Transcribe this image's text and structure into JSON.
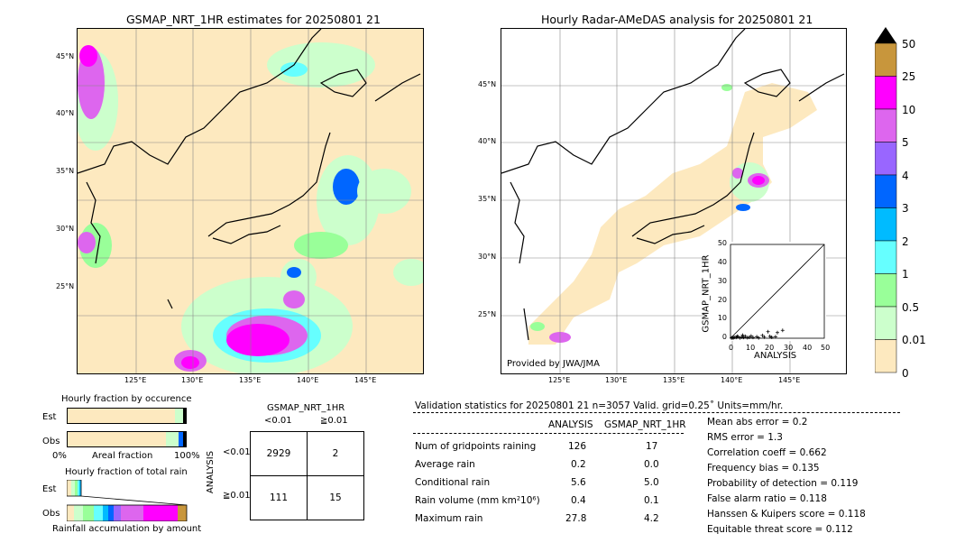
{
  "maps": {
    "left_title": "GSMAP_NRT_1HR estimates for 20250801 21",
    "right_title": "Hourly Radar-AMeDAS analysis for 20250801 21",
    "lat_labels": [
      "45°N",
      "40°N",
      "35°N",
      "30°N",
      "25°N"
    ],
    "lon_labels": [
      "125°E",
      "130°E",
      "135°E",
      "140°E",
      "145°E"
    ],
    "provided_by": "Provided by JWA/JMA"
  },
  "colorbar": {
    "labels": [
      "50",
      "25",
      "10",
      "5",
      "4",
      "3",
      "2",
      "1",
      "0.5",
      "0.01",
      "0"
    ],
    "colors": [
      "#c8963c",
      "#ff00ff",
      "#dd66ee",
      "#9966ff",
      "#0066ff",
      "#00bbff",
      "#66ffff",
      "#99ff99",
      "#ccffcc",
      "#fde9bf"
    ],
    "extend_color": "#000000"
  },
  "fraction_occurrence": {
    "title": "Hourly fraction by occurence",
    "row_labels": [
      "Est",
      "Obs"
    ],
    "axis_left": "0%",
    "axis_center": "Areal fraction",
    "axis_right": "100%"
  },
  "fraction_total": {
    "title": "Hourly fraction of total rain",
    "row_labels": [
      "Est",
      "Obs"
    ],
    "footer": "Rainfall accumulation by amount"
  },
  "contingency": {
    "title": "GSMAP_NRT_1HR",
    "col_labels": [
      "<0.01",
      "≧0.01"
    ],
    "row_axis": "ANALYSIS",
    "row_labels": [
      "<0.01",
      "≧0.01"
    ],
    "cells": [
      [
        "2929",
        "2"
      ],
      [
        "111",
        "15"
      ]
    ]
  },
  "validation": {
    "header": "Validation statistics for 20250801 21  n=3057 Valid. grid=0.25˚ Units=mm/hr.",
    "col_analysis": "ANALYSIS",
    "col_gsmap": "GSMAP_NRT_1HR",
    "rows": [
      {
        "label": "Num of gridpoints raining",
        "analysis": "126",
        "gsmap": "17"
      },
      {
        "label": "Average rain",
        "analysis": "0.2",
        "gsmap": "0.0"
      },
      {
        "label": "Conditional rain",
        "analysis": "5.6",
        "gsmap": "5.0"
      },
      {
        "label": "Rain volume (mm km²10⁶)",
        "analysis": "0.4",
        "gsmap": "0.1"
      },
      {
        "label": "Maximum rain",
        "analysis": "27.8",
        "gsmap": "4.2"
      }
    ],
    "scores": [
      "Mean abs error =    0.2",
      "RMS error =    1.3",
      "Correlation coeff =  0.662",
      "Frequency bias =  0.135",
      "Probability of detection =  0.119",
      "False alarm ratio =  0.118",
      "Hanssen & Kuipers score =  0.118",
      "Equitable threat score =  0.112"
    ]
  },
  "chart_data": {
    "type": "scatter",
    "xlabel": "ANALYSIS",
    "ylabel": "GSMAP_NRT_1HR",
    "xlim": [
      0,
      50
    ],
    "ylim": [
      0,
      50
    ],
    "ticks": [
      "0",
      "10",
      "20",
      "30",
      "40",
      "50"
    ],
    "points": [
      [
        1,
        0.3
      ],
      [
        2,
        0.5
      ],
      [
        3,
        0.4
      ],
      [
        4,
        0.8
      ],
      [
        5,
        0.2
      ],
      [
        6,
        0.6
      ],
      [
        7,
        0.4
      ],
      [
        8,
        1.0
      ],
      [
        9,
        0.3
      ],
      [
        10,
        0.5
      ],
      [
        11,
        1.2
      ],
      [
        12,
        0.4
      ],
      [
        14,
        0.8
      ],
      [
        15,
        0.2
      ],
      [
        17,
        1.5
      ],
      [
        18,
        0.6
      ],
      [
        20,
        3.5
      ],
      [
        21,
        1.0
      ],
      [
        22,
        0.5
      ],
      [
        24,
        0.8
      ],
      [
        25,
        3.0
      ],
      [
        27.8,
        4.2
      ],
      [
        0.5,
        0.1
      ],
      [
        1.5,
        0.2
      ],
      [
        3.5,
        1.1
      ],
      [
        6.5,
        1.6
      ]
    ]
  }
}
